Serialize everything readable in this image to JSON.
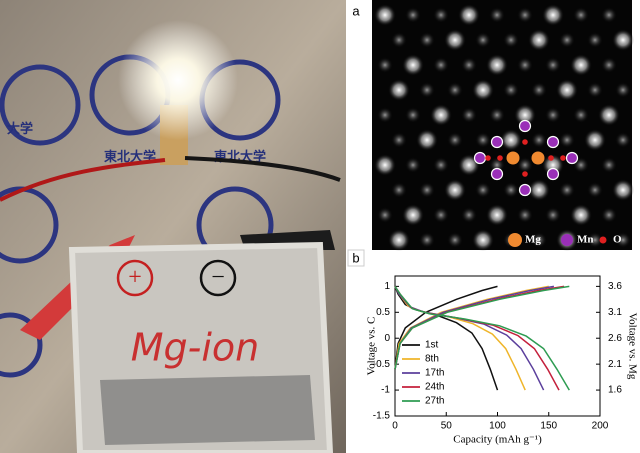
{
  "photo": {
    "emblem_labels": [
      "東北大学",
      "東北大学",
      "大学"
    ],
    "plus": "+",
    "minus": "−",
    "pouch_label": "Mg-ion"
  },
  "panel_a": {
    "label": "a",
    "legend": [
      "Mg",
      "Mn",
      "O"
    ]
  },
  "panel_b": {
    "label": "b"
  },
  "chart_data": {
    "type": "line",
    "xlabel": "Capacity (mAh g⁻¹)",
    "ylabel": "Voltage vs. C",
    "y2label": "Voltage vs. Mg",
    "xlim": [
      0,
      200
    ],
    "xticks": [
      0,
      50,
      100,
      150,
      200
    ],
    "ylim": [
      -1.5,
      1.2
    ],
    "yticks": [
      -1.5,
      -1,
      -0.5,
      0,
      0.5,
      1
    ],
    "y2lim": [
      1.1,
      3.8
    ],
    "y2ticks": [
      1.6,
      2.1,
      2.6,
      3.1,
      3.6
    ],
    "legend_loc": "lower left",
    "series": [
      {
        "name": "1st",
        "color": "#111111",
        "x": [
          0,
          3,
          10,
          30,
          60,
          85,
          100,
          null,
          0,
          3,
          10,
          20,
          40,
          60,
          75,
          85,
          93,
          100
        ],
        "values": [
          -0.6,
          -0.1,
          0.2,
          0.5,
          0.75,
          0.92,
          1.0,
          null,
          1.0,
          0.85,
          0.65,
          0.55,
          0.45,
          0.3,
          0.1,
          -0.2,
          -0.6,
          -1.0
        ]
      },
      {
        "name": "8th",
        "color": "#efb52a",
        "x": [
          0,
          4,
          15,
          45,
          90,
          128,
          150,
          null,
          0,
          4,
          13,
          25,
          51,
          76,
          95,
          108,
          118,
          127
        ],
        "values": [
          -0.6,
          -0.1,
          0.2,
          0.5,
          0.75,
          0.92,
          1.0,
          null,
          1.0,
          0.85,
          0.62,
          0.52,
          0.42,
          0.28,
          0.08,
          -0.2,
          -0.6,
          -1.0
        ]
      },
      {
        "name": "17th",
        "color": "#5b3f9c",
        "x": [
          0,
          5,
          16,
          47,
          93,
          132,
          155,
          null,
          0,
          4,
          15,
          29,
          58,
          87,
          109,
          123,
          135,
          145
        ],
        "values": [
          -0.6,
          -0.1,
          0.2,
          0.5,
          0.75,
          0.92,
          1.0,
          null,
          1.0,
          0.85,
          0.6,
          0.5,
          0.4,
          0.27,
          0.06,
          -0.2,
          -0.6,
          -1.0
        ]
      },
      {
        "name": "24th",
        "color": "#c4203c",
        "x": [
          0,
          5,
          17,
          50,
          99,
          140,
          165,
          null,
          0,
          5,
          16,
          32,
          64,
          96,
          120,
          136,
          149,
          160
        ],
        "values": [
          -0.6,
          -0.1,
          0.2,
          0.5,
          0.75,
          0.92,
          1.0,
          null,
          1.0,
          0.85,
          0.58,
          0.48,
          0.38,
          0.25,
          0.05,
          -0.2,
          -0.6,
          -1.0
        ]
      },
      {
        "name": "27th",
        "color": "#2e9c52",
        "x": [
          0,
          5,
          17,
          51,
          102,
          145,
          170,
          null,
          0,
          5,
          17,
          34,
          68,
          102,
          128,
          145,
          158,
          170
        ],
        "values": [
          -0.6,
          -0.1,
          0.2,
          0.5,
          0.75,
          0.92,
          1.0,
          null,
          1.0,
          0.85,
          0.57,
          0.47,
          0.37,
          0.24,
          0.04,
          -0.2,
          -0.6,
          -1.0
        ]
      }
    ]
  }
}
